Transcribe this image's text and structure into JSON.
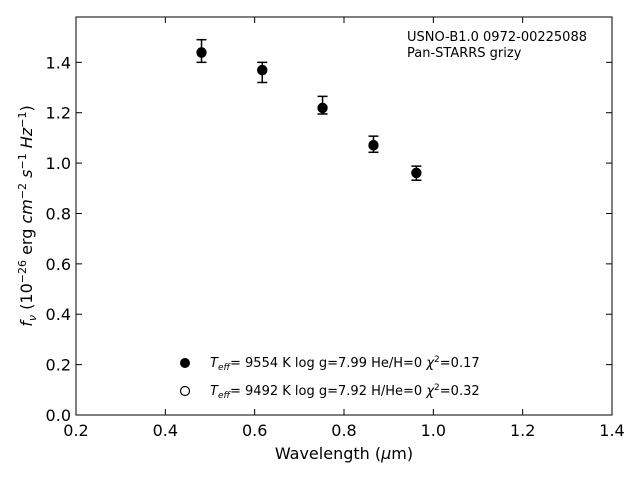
{
  "chart_data": {
    "type": "scatter",
    "xlabel_prefix": "Wavelength (",
    "xlabel_mu": "μ",
    "xlabel_suffix": "m)",
    "ylabel": "f_ν (10^{−26} erg cm^{−2} s^{−1} Hz^{−1})",
    "xlim": [
      0.2,
      1.4
    ],
    "ylim": [
      0.0,
      1.58
    ],
    "xticks": [
      "0.2",
      "0.4",
      "0.6",
      "0.8",
      "1.0",
      "1.2",
      "1.4"
    ],
    "yticks": [
      "0.0",
      "0.2",
      "0.4",
      "0.6",
      "0.8",
      "1.0",
      "1.2",
      "1.4"
    ],
    "grid": false,
    "annotations": [
      "USNO-B1.0 0972-00225088",
      "Pan-STARRS grizy"
    ],
    "observed": {
      "x": [
        0.481,
        0.617,
        0.752,
        0.866,
        0.962
      ],
      "y": [
        1.445,
        1.36,
        1.23,
        1.075,
        0.96
      ],
      "err": [
        0.045,
        0.04,
        0.035,
        0.032,
        0.028
      ]
    },
    "series": [
      {
        "marker": "filled",
        "x": [
          0.481,
          0.617,
          0.752,
          0.866,
          0.962
        ],
        "y": [
          1.44,
          1.37,
          1.22,
          1.072,
          0.962
        ]
      },
      {
        "marker": "open",
        "x": [
          0.481,
          0.617,
          0.752,
          0.866,
          0.962
        ],
        "y": [
          1.438,
          1.368,
          1.218,
          1.07,
          0.96
        ]
      }
    ],
    "legend": {
      "placement": "bottom-center",
      "entries": [
        {
          "marker": "filled",
          "teff": "9554 K",
          "logg": "log g=7.99",
          "comp": "He/H=0",
          "chi2": "=0.17"
        },
        {
          "marker": "open",
          "teff": "9492 K",
          "logg": "log g=7.92",
          "comp": "H/He=0",
          "chi2": "=0.32"
        }
      ]
    }
  }
}
